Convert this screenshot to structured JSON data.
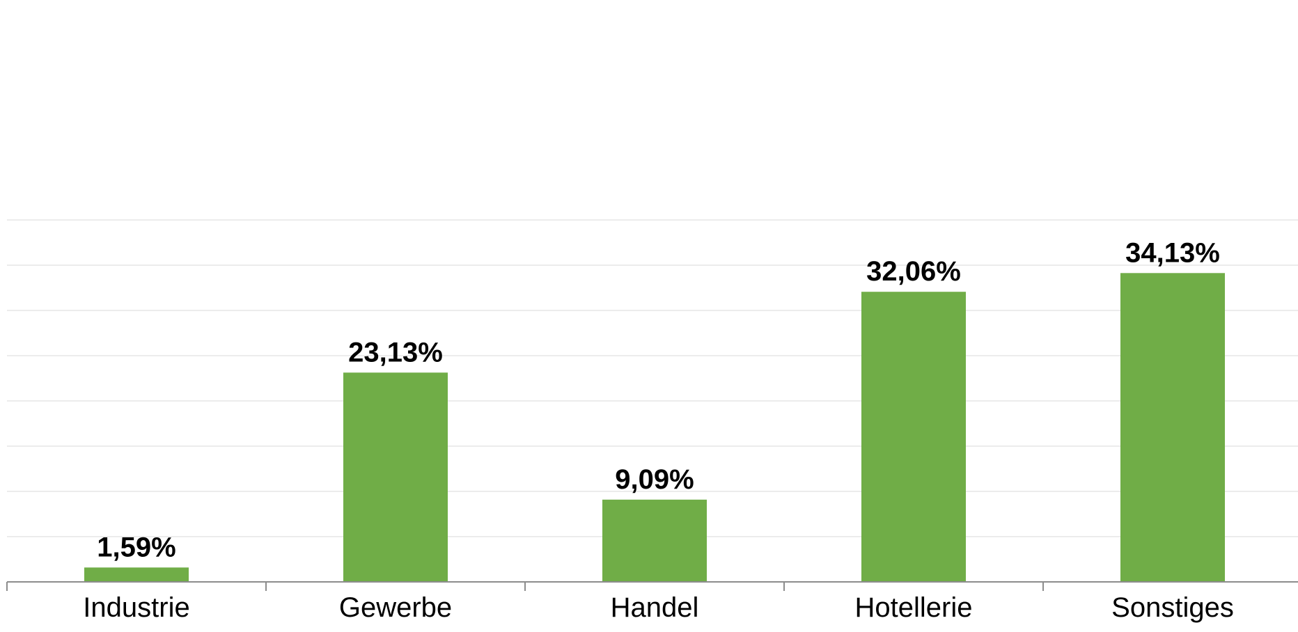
{
  "chart_data": {
    "type": "bar",
    "categories": [
      "Industrie",
      "Gewerbe",
      "Handel",
      "Hotellerie",
      "Sonstiges"
    ],
    "values": [
      1.59,
      23.13,
      9.09,
      32.06,
      34.13
    ],
    "data_labels": [
      "1,59%",
      "23,13%",
      "9,09%",
      "32,06%",
      "34,13%"
    ],
    "ylim": [
      0,
      40
    ],
    "grid": true,
    "colors": {
      "bar": "#70ad47"
    }
  }
}
